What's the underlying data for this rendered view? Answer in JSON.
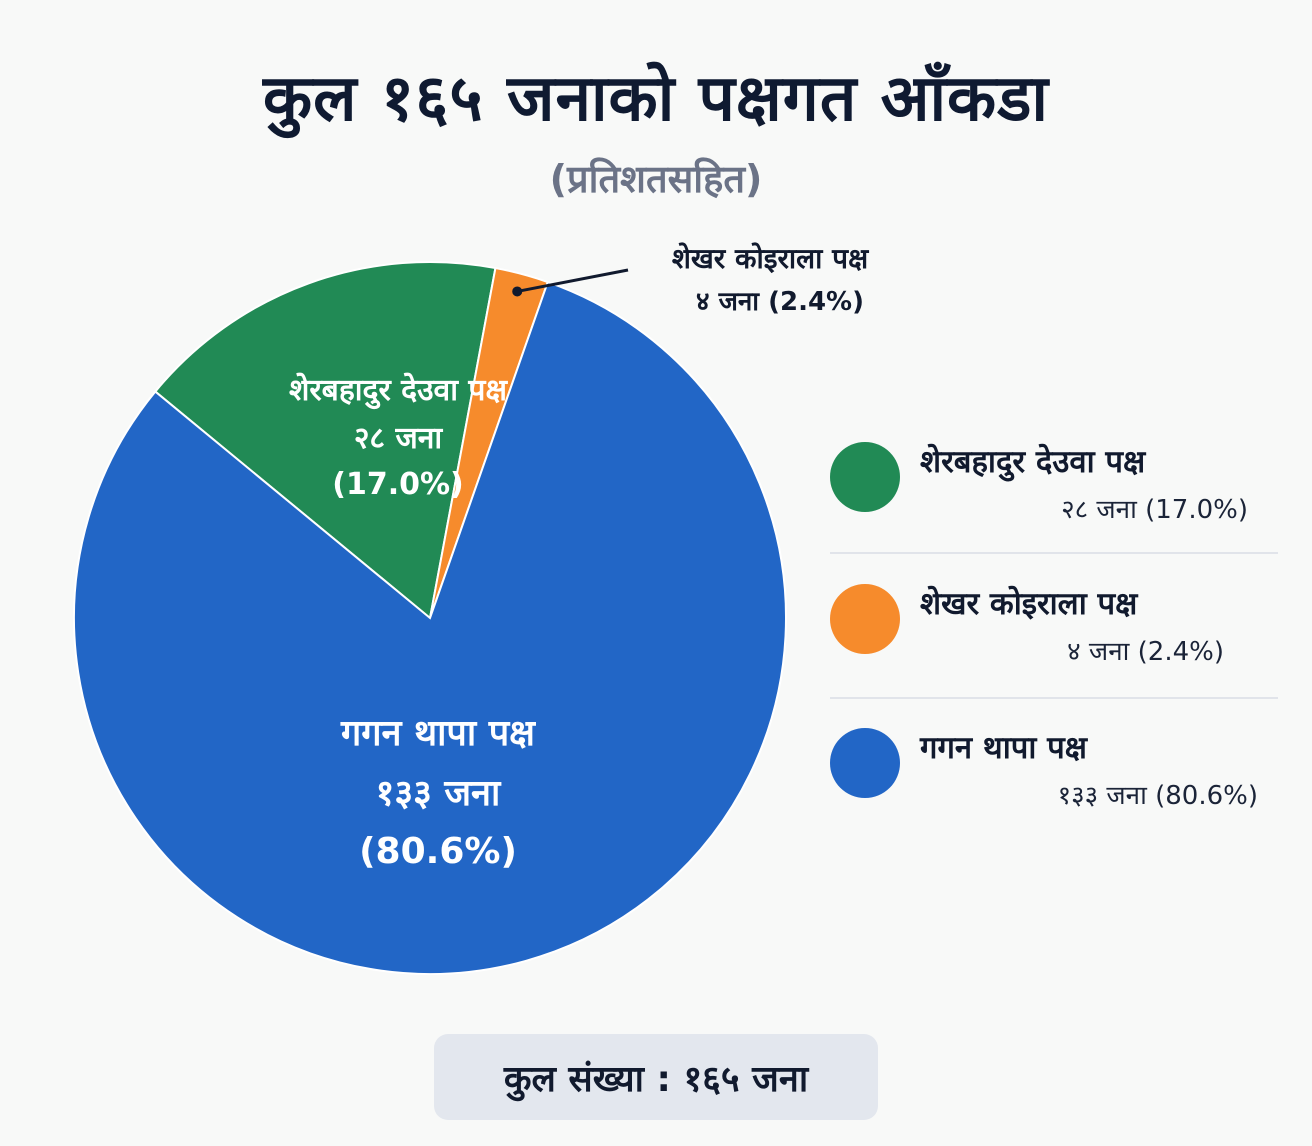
{
  "title": "कुल १६५ जनाको पक्षगत आँकडा",
  "subtitle": "(प्रतिशतसहित)",
  "chart_data": {
    "type": "pie",
    "slices": [
      {
        "name": "शेरबहादुर देउवा पक्ष",
        "legend_name": "शेरबहादुर  देउवा पक्ष",
        "value": 28,
        "count_label": "२८ जना",
        "percent_label": "(17.0%)",
        "legend_value": "२८ जना (17.0%)",
        "color": "#218a55"
      },
      {
        "name": "शेखर कोइराला पक्ष",
        "legend_name": "शेखर कोइराला पक्ष",
        "value": 4,
        "count_label": "४ जना",
        "percent_label": "(2.4%)",
        "legend_value": "४ जना (2.4%)",
        "callout": "४ जना (2.4%)",
        "color": "#f68b2c"
      },
      {
        "name": "गगन थापा पक्ष",
        "legend_name": "गगन थापा पक्ष",
        "value": 133,
        "count_label": "१३३ जना",
        "percent_label": "(80.6%)",
        "legend_value": "१३३ जना (80.6%)",
        "color": "#2266c6"
      }
    ],
    "legend_position": "right"
  },
  "total_label": "कुल संख्या : १६५ जना"
}
